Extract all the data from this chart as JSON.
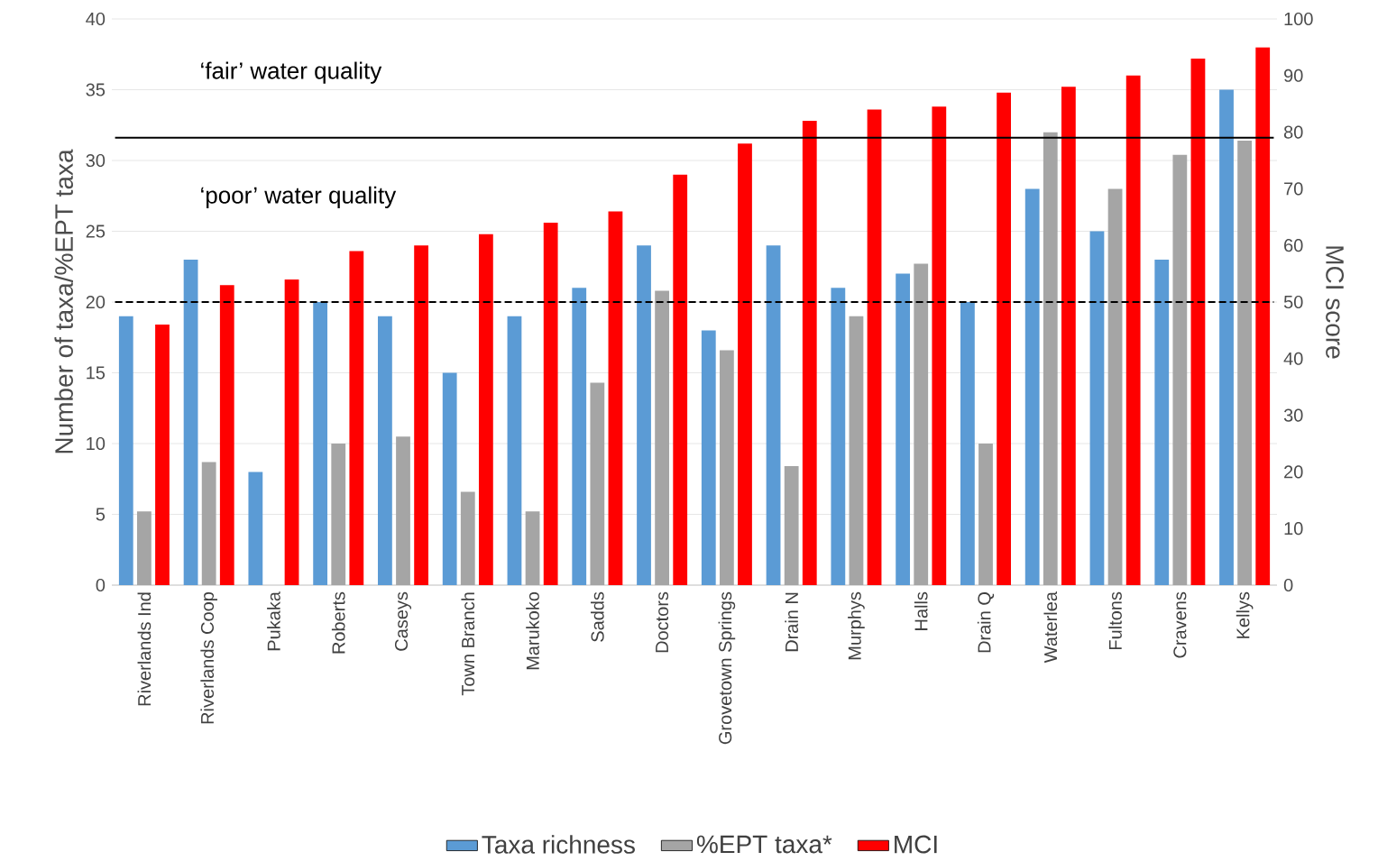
{
  "chart_data": {
    "type": "bar",
    "categories": [
      "Riverlands Ind",
      "Riverlands Coop",
      "Pukaka",
      "Roberts",
      "Caseys",
      "Town Branch",
      "Marukoko",
      "Sadds",
      "Doctors",
      "Grovetown Springs",
      "Drain N",
      "Murphys",
      "Halls",
      "Drain Q",
      "Waterlea",
      "Fultons",
      "Cravens",
      "Kellys"
    ],
    "series": [
      {
        "name": "Taxa richness",
        "color": "#5b9bd5",
        "values": [
          19,
          23,
          8,
          20,
          19,
          15,
          19,
          21,
          24,
          18,
          24,
          21,
          22,
          20,
          28,
          25,
          23,
          35
        ]
      },
      {
        "name": "%EPT taxa*",
        "color": "#a5a5a5",
        "values": [
          5.2,
          8.7,
          0,
          10,
          10.5,
          6.6,
          5.2,
          14.3,
          20.8,
          16.6,
          8.4,
          19,
          22.7,
          10,
          32,
          28,
          30.4,
          31.4
        ]
      },
      {
        "name": "MCI",
        "color": "#ff0000",
        "axis": "y2",
        "values": [
          46,
          53,
          54,
          59,
          60,
          62,
          64,
          66,
          72.5,
          78,
          82,
          84,
          84.5,
          87,
          88,
          90,
          93,
          95
        ]
      }
    ],
    "ylabel": "Number of taxa/%EPT taxa",
    "y2label": "MCI score",
    "ylim": [
      0,
      40
    ],
    "yticks": [
      0,
      5,
      10,
      15,
      20,
      25,
      30,
      35,
      40
    ],
    "y2lim": [
      0,
      100
    ],
    "y2ticks": [
      0,
      10,
      20,
      30,
      40,
      50,
      60,
      70,
      80,
      90,
      100
    ],
    "ref_lines": [
      {
        "axis": "y2",
        "value": 79,
        "color": "#000000",
        "line_style": "solid"
      },
      {
        "axis": "y2",
        "value": 50,
        "color": "#000000",
        "line_style": "dashed"
      }
    ],
    "annotations": [
      "‘fair’ water quality",
      "‘poor’ water quality"
    ],
    "grid": "y",
    "legend": "bottom"
  }
}
